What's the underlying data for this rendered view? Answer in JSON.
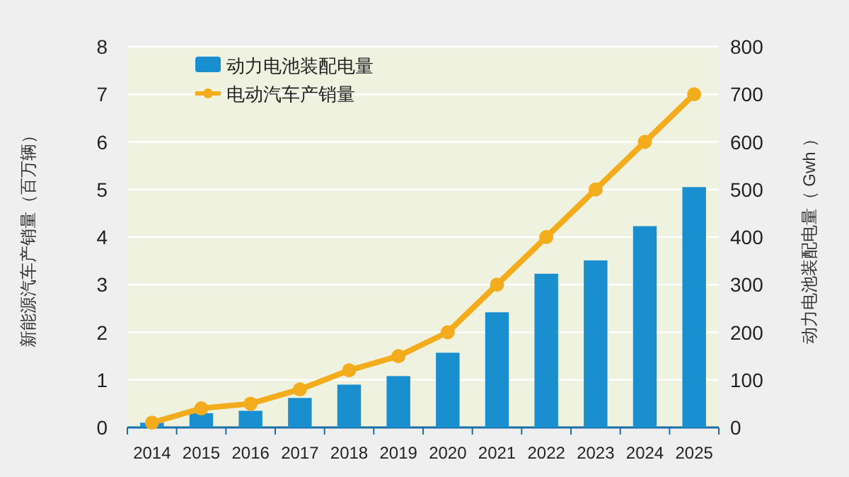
{
  "chart_data": {
    "type": "bar",
    "categories": [
      "2014",
      "2015",
      "2016",
      "2017",
      "2018",
      "2019",
      "2020",
      "2021",
      "2022",
      "2023",
      "2024",
      "2025"
    ],
    "series": [
      {
        "name": "动力电池装配电量",
        "axis": "y2",
        "color": "#1a8fd0",
        "values": [
          10,
          30,
          35,
          62,
          90,
          108,
          157,
          242,
          323,
          351,
          423,
          505
        ]
      },
      {
        "name": "电动汽车产销量",
        "type": "line",
        "axis": "y",
        "color": "#f2ac1c",
        "marker": "circle",
        "values": [
          0.1,
          0.4,
          0.5,
          0.8,
          1.2,
          1.5,
          2.0,
          3.0,
          4.0,
          5.0,
          6.0,
          7.0
        ]
      }
    ],
    "ylabel": "新能源汽车产销量（百万辆）",
    "y2label": "动力电池装配电量（ Gwh ）",
    "ylim": [
      0,
      8
    ],
    "yticks": [
      0,
      1,
      2,
      3,
      4,
      5,
      6,
      7,
      8
    ],
    "y2lim": [
      0,
      800
    ],
    "y2ticks": [
      0,
      100,
      200,
      300,
      400,
      500,
      600,
      700,
      800
    ],
    "grid": "y",
    "legend": "top left"
  }
}
